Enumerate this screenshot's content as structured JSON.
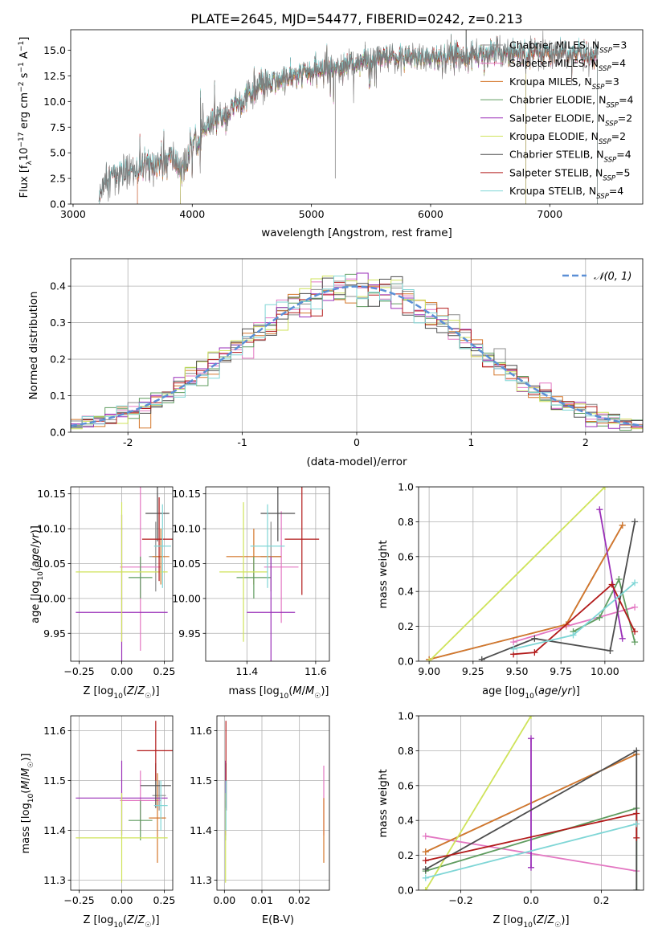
{
  "figure": {
    "title": "PLATE=2645, MJD=54477, FIBERID=0242, z=0.213",
    "colors": {
      "Chabrier MILES": "#8c8c8c",
      "Salpeter MILES": "#e377c2",
      "Kroupa MILES": "#d4772b",
      "Chabrier ELODIE": "#5f9c5f",
      "Salpeter ELODIE": "#9a2fb8",
      "Kroupa ELODIE": "#cfe35a",
      "Chabrier STELIB": "#4d4d4d",
      "Salpeter STELIB": "#b21a1a",
      "Kroupa STELIB": "#7fd6d6",
      "gaussian": "#5b8fd6"
    }
  },
  "chart_data": [
    {
      "id": "spectrum",
      "type": "line",
      "title": "PLATE=2645, MJD=54477, FIBERID=0242, z=0.213",
      "xlabel": "wavelength [Angstrom, rest frame]",
      "ylabel": "Flux [f_λ 10^-17 erg cm^-2 s^-1 A^-1]",
      "xlim": [
        2980,
        7780
      ],
      "ylim": [
        0,
        17
      ],
      "xticks": [
        3000,
        4000,
        5000,
        6000,
        7000
      ],
      "yticks": [
        0.0,
        2.5,
        5.0,
        7.5,
        10.0,
        12.5,
        15.0
      ],
      "grid": false,
      "legend_position": "top-right",
      "series": [
        {
          "name": "Chabrier MILES",
          "nssp": "3"
        },
        {
          "name": "Salpeter MILES",
          "nssp": "4"
        },
        {
          "name": "Kroupa MILES",
          "nssp": "3"
        },
        {
          "name": "Chabrier ELODIE",
          "nssp": "4"
        },
        {
          "name": "Salpeter ELODIE",
          "nssp": "2"
        },
        {
          "name": "Kroupa ELODIE",
          "nssp": "2"
        },
        {
          "name": "Chabrier STELIB",
          "nssp": "4"
        },
        {
          "name": "Salpeter STELIB",
          "nssp": "5"
        },
        {
          "name": "Kroupa STELIB",
          "nssp": "4"
        }
      ],
      "continuum": {
        "x": [
          3220,
          3250,
          3300,
          3400,
          3500,
          3600,
          3700,
          3800,
          3850,
          3900,
          3950,
          4000,
          4100,
          4200,
          4300,
          4400,
          4500,
          4600,
          4800,
          5000,
          5200,
          5400,
          5600,
          5800,
          6000,
          6200,
          6400,
          6600,
          6800,
          7000,
          7200,
          7400
        ],
        "y": [
          0.0,
          2.0,
          2.5,
          2.8,
          3.2,
          3.6,
          4.0,
          4.3,
          4.4,
          3.5,
          3.8,
          5.8,
          7.0,
          8.3,
          8.8,
          10.0,
          10.8,
          11.5,
          12.3,
          12.8,
          13.4,
          13.8,
          14.2,
          14.2,
          14.3,
          14.5,
          14.6,
          14.8,
          14.7,
          14.8,
          14.6,
          14.5
        ]
      },
      "curve_ranges": {
        "Chabrier MILES": [
          3540,
          7400
        ],
        "Salpeter MILES": [
          3540,
          7400
        ],
        "Kroupa MILES": [
          3540,
          7400
        ],
        "Chabrier ELODIE": [
          3900,
          6800
        ],
        "Salpeter ELODIE": [
          3900,
          6800
        ],
        "Kroupa ELODIE": [
          3900,
          6800
        ],
        "Chabrier STELIB": [
          3220,
          7400
        ],
        "Salpeter STELIB": [
          3220,
          7400
        ],
        "Kroupa STELIB": [
          3220,
          7400
        ]
      }
    },
    {
      "id": "residuals",
      "type": "histogram",
      "xlabel": "(data-model)/error",
      "ylabel": "Normed distribution",
      "xlim": [
        -2.5,
        2.5
      ],
      "ylim": [
        0,
        0.475
      ],
      "xticks": [
        -2,
        -1,
        0,
        1,
        2
      ],
      "yticks": [
        0.0,
        0.1,
        0.2,
        0.3,
        0.4
      ],
      "grid": true,
      "bin_width": 0.1,
      "legend_position": "top-right",
      "legend_label": "𝒩(0, 1)",
      "gaussian": {
        "mean": 0,
        "sigma": 1
      }
    },
    {
      "id": "age_vs_z",
      "type": "errorbar",
      "xlabel": "Z [log10(Z/Z☉)]",
      "ylabel": "age [log10(age/yr)]",
      "xlim": [
        -0.3,
        0.3
      ],
      "ylim": [
        9.91,
        10.16
      ],
      "xticks": [
        -0.25,
        0.0,
        0.25
      ],
      "xtick_labels": [
        "−0.25",
        "0.00",
        "0.25"
      ],
      "yticks": [
        9.95,
        10.0,
        10.05,
        10.1,
        10.15
      ],
      "grid": true,
      "points": [
        {
          "model": "Chabrier MILES",
          "x": 0.2,
          "xerr": 0.04,
          "y": 10.06,
          "yerr": 0.05
        },
        {
          "model": "Salpeter MILES",
          "x": 0.11,
          "xerr": 0.12,
          "y": 10.045,
          "yerr": 0.12
        },
        {
          "model": "Kroupa MILES",
          "x": 0.23,
          "xerr": 0.05,
          "y": 10.06,
          "yerr": 0.04
        },
        {
          "model": "Chabrier ELODIE",
          "x": 0.11,
          "xerr": 0.07,
          "y": 10.03,
          "yerr": 0.03
        },
        {
          "model": "Salpeter ELODIE",
          "x": 0.0,
          "xerr": 0.27,
          "y": 9.98,
          "yerr": 0.14
        },
        {
          "model": "Kroupa ELODIE",
          "x": 0.0,
          "xerr": 0.27,
          "y": 10.038,
          "yerr": 0.1
        },
        {
          "model": "Chabrier STELIB",
          "x": 0.21,
          "xerr": 0.07,
          "y": 10.122,
          "yerr": 0.04
        },
        {
          "model": "Salpeter STELIB",
          "x": 0.22,
          "xerr": 0.1,
          "y": 10.085,
          "yerr": 0.06
        },
        {
          "model": "Kroupa STELIB",
          "x": 0.24,
          "xerr": 0.05,
          "y": 10.075,
          "yerr": 0.06
        }
      ]
    },
    {
      "id": "age_vs_mass",
      "type": "errorbar",
      "xlabel": "mass [log10(M/M☉)]",
      "ylabel": "",
      "xlim": [
        11.28,
        11.64
      ],
      "ylim": [
        9.91,
        10.16
      ],
      "xticks": [
        11.4,
        11.6
      ],
      "yticks": [
        9.95,
        10.0,
        10.05,
        10.1,
        10.15
      ],
      "grid": true,
      "points": [
        {
          "model": "Chabrier MILES",
          "x": 11.47,
          "xerr": 0.03,
          "y": 10.06,
          "yerr": 0.05
        },
        {
          "model": "Salpeter MILES",
          "x": 11.5,
          "xerr": 0.05,
          "y": 10.045,
          "yerr": 0.08
        },
        {
          "model": "Kroupa MILES",
          "x": 11.42,
          "xerr": 0.08,
          "y": 10.06,
          "yerr": 0.04
        },
        {
          "model": "Chabrier ELODIE",
          "x": 11.42,
          "xerr": 0.05,
          "y": 10.03,
          "yerr": 0.03
        },
        {
          "model": "Salpeter ELODIE",
          "x": 11.47,
          "xerr": 0.07,
          "y": 9.98,
          "yerr": 0.08
        },
        {
          "model": "Kroupa ELODIE",
          "x": 11.39,
          "xerr": 0.07,
          "y": 10.038,
          "yerr": 0.1
        },
        {
          "model": "Chabrier STELIB",
          "x": 11.49,
          "xerr": 0.05,
          "y": 10.122,
          "yerr": 0.04
        },
        {
          "model": "Salpeter STELIB",
          "x": 11.56,
          "xerr": 0.05,
          "y": 10.085,
          "yerr": 0.08
        },
        {
          "model": "Kroupa STELIB",
          "x": 11.46,
          "xerr": 0.05,
          "y": 10.075,
          "yerr": 0.06
        }
      ]
    },
    {
      "id": "weight_vs_age",
      "type": "line",
      "xlabel": "age [log10(age/yr)]",
      "ylabel": "mass weight",
      "xlim": [
        8.94,
        10.22
      ],
      "ylim": [
        0,
        1
      ],
      "xticks": [
        9.0,
        9.25,
        9.5,
        9.75,
        10.0
      ],
      "xtick_labels": [
        "9.00",
        "9.25",
        "9.50",
        "9.75",
        "10.00"
      ],
      "yticks": [
        0.0,
        0.2,
        0.4,
        0.6,
        0.8,
        1.0
      ],
      "grid": true,
      "series": [
        {
          "name": "Chabrier MILES",
          "x": [
            9.0,
            9.78,
            10.1
          ],
          "y": [
            0.01,
            0.21,
            0.78
          ]
        },
        {
          "name": "Salpeter MILES",
          "x": [
            9.48,
            9.78,
            10.17
          ],
          "y": [
            0.11,
            0.2,
            0.31
          ]
        },
        {
          "name": "Kroupa MILES",
          "x": [
            9.0,
            9.78,
            10.1
          ],
          "y": [
            0.01,
            0.21,
            0.78
          ]
        },
        {
          "name": "Chabrier ELODIE",
          "x": [
            9.82,
            9.97,
            10.08,
            10.17
          ],
          "y": [
            0.17,
            0.25,
            0.47,
            0.11
          ]
        },
        {
          "name": "Salpeter ELODIE",
          "x": [
            9.97,
            10.1
          ],
          "y": [
            0.87,
            0.13
          ]
        },
        {
          "name": "Kroupa ELODIE",
          "x": [
            9.0,
            10.0
          ],
          "y": [
            0.0,
            1.0
          ]
        },
        {
          "name": "Chabrier STELIB",
          "x": [
            9.3,
            9.6,
            10.03,
            10.17
          ],
          "y": [
            0.01,
            0.13,
            0.06,
            0.8
          ]
        },
        {
          "name": "Salpeter STELIB",
          "x": [
            9.48,
            9.6,
            10.04,
            10.17
          ],
          "y": [
            0.04,
            0.05,
            0.44,
            0.17
          ]
        },
        {
          "name": "Kroupa STELIB",
          "x": [
            9.48,
            9.82,
            10.17
          ],
          "y": [
            0.07,
            0.15,
            0.45
          ]
        }
      ]
    },
    {
      "id": "mass_vs_z",
      "type": "errorbar",
      "xlabel": "Z [log10(Z/Z☉)]",
      "ylabel": "mass [log10(M/M☉)]",
      "xlim": [
        -0.3,
        0.3
      ],
      "ylim": [
        11.28,
        11.63
      ],
      "xticks": [
        -0.25,
        0.0,
        0.25
      ],
      "xtick_labels": [
        "−0.25",
        "0.00",
        "0.25"
      ],
      "yticks": [
        11.3,
        11.4,
        11.5,
        11.6
      ],
      "grid": true,
      "points": [
        {
          "model": "Chabrier MILES",
          "x": 0.22,
          "xerr": 0.04,
          "y": 11.47,
          "yerr": 0.03
        },
        {
          "model": "Salpeter MILES",
          "x": 0.11,
          "xerr": 0.12,
          "y": 11.46,
          "yerr": 0.06
        },
        {
          "model": "Kroupa MILES",
          "x": 0.21,
          "xerr": 0.05,
          "y": 11.425,
          "yerr": 0.09
        },
        {
          "model": "Chabrier ELODIE",
          "x": 0.11,
          "xerr": 0.07,
          "y": 11.42,
          "yerr": 0.04
        },
        {
          "model": "Salpeter ELODIE",
          "x": 0.0,
          "xerr": 0.27,
          "y": 11.465,
          "yerr": 0.075
        },
        {
          "model": "Kroupa ELODIE",
          "x": 0.0,
          "xerr": 0.27,
          "y": 11.385,
          "yerr": 0.09
        },
        {
          "model": "Chabrier STELIB",
          "x": 0.2,
          "xerr": 0.09,
          "y": 11.49,
          "yerr": 0.045
        },
        {
          "model": "Salpeter STELIB",
          "x": 0.2,
          "xerr": 0.11,
          "y": 11.56,
          "yerr": 0.06
        },
        {
          "model": "Kroupa STELIB",
          "x": 0.23,
          "xerr": 0.04,
          "y": 11.45,
          "yerr": 0.05
        }
      ]
    },
    {
      "id": "mass_vs_ebv",
      "type": "errorbar",
      "xlabel": "E(B-V)",
      "ylabel": "",
      "xlim": [
        -0.002,
        0.028
      ],
      "ylim": [
        11.28,
        11.63
      ],
      "xticks": [
        0.0,
        0.01,
        0.02
      ],
      "xtick_labels": [
        "0.00",
        "0.01",
        "0.02"
      ],
      "yticks": [
        11.3,
        11.4,
        11.5,
        11.6
      ],
      "grid": true,
      "points": [
        {
          "model": "Chabrier MILES",
          "x": 0.0005,
          "xerr": 0,
          "y": 11.47,
          "yerr": 0.03
        },
        {
          "model": "Salpeter MILES",
          "x": 0.0265,
          "xerr": 0,
          "y": 11.46,
          "yerr": 0.07
        },
        {
          "model": "Kroupa MILES",
          "x": 0.0265,
          "xerr": 0,
          "y": 11.4,
          "yerr": 0.065
        },
        {
          "model": "Chabrier ELODIE",
          "x": 0.0003,
          "xerr": 0,
          "y": 11.42,
          "yerr": 0.04
        },
        {
          "model": "Salpeter ELODIE",
          "x": 0.0003,
          "xerr": 0,
          "y": 11.465,
          "yerr": 0.075
        },
        {
          "model": "Kroupa ELODIE",
          "x": 0.0003,
          "xerr": 0,
          "y": 11.385,
          "yerr": 0.09
        },
        {
          "model": "Chabrier STELIB",
          "x": 0.0004,
          "xerr": 0,
          "y": 11.49,
          "yerr": 0.045
        },
        {
          "model": "Salpeter STELIB",
          "x": 0.0004,
          "xerr": 0,
          "y": 11.56,
          "yerr": 0.06
        },
        {
          "model": "Kroupa STELIB",
          "x": 0.0004,
          "xerr": 0,
          "y": 11.45,
          "yerr": 0.05
        }
      ]
    },
    {
      "id": "weight_vs_z",
      "type": "line",
      "xlabel": "Z [log10(Z/Z☉)]",
      "ylabel": "mass weight",
      "xlim": [
        -0.32,
        0.32
      ],
      "ylim": [
        0,
        1
      ],
      "xticks": [
        -0.2,
        0.0,
        0.2
      ],
      "xtick_labels": [
        "−0.2",
        "0.0",
        "0.2"
      ],
      "yticks": [
        0.0,
        0.2,
        0.4,
        0.6,
        0.8,
        1.0
      ],
      "grid": true,
      "series": [
        {
          "name": "Chabrier MILES",
          "x": [
            -0.3,
            0.3
          ],
          "y": [
            0.22,
            0.78
          ]
        },
        {
          "name": "Salpeter MILES",
          "x": [
            -0.3,
            0.3
          ],
          "y": [
            0.31,
            0.11
          ]
        },
        {
          "name": "Kroupa MILES",
          "x": [
            -0.3,
            0.3
          ],
          "y": [
            0.22,
            0.78
          ]
        },
        {
          "name": "Chabrier ELODIE",
          "x": [
            -0.3,
            0.3,
            0.3
          ],
          "y": [
            0.11,
            0.47,
            0.0
          ]
        },
        {
          "name": "Salpeter ELODIE",
          "x": [
            0.0,
            0.0
          ],
          "y": [
            0.87,
            0.13
          ]
        },
        {
          "name": "Kroupa ELODIE",
          "x": [
            -0.3,
            0.0
          ],
          "y": [
            0.0,
            1.0
          ]
        },
        {
          "name": "Chabrier STELIB",
          "x": [
            -0.3,
            0.3,
            0.3
          ],
          "y": [
            0.12,
            0.8,
            0.0
          ]
        },
        {
          "name": "Salpeter STELIB",
          "x": [
            -0.3,
            0.3,
            0.3
          ],
          "y": [
            0.17,
            0.44,
            0.3
          ]
        },
        {
          "name": "Kroupa STELIB",
          "x": [
            -0.3,
            0.3
          ],
          "y": [
            0.07,
            0.38
          ]
        }
      ]
    }
  ]
}
